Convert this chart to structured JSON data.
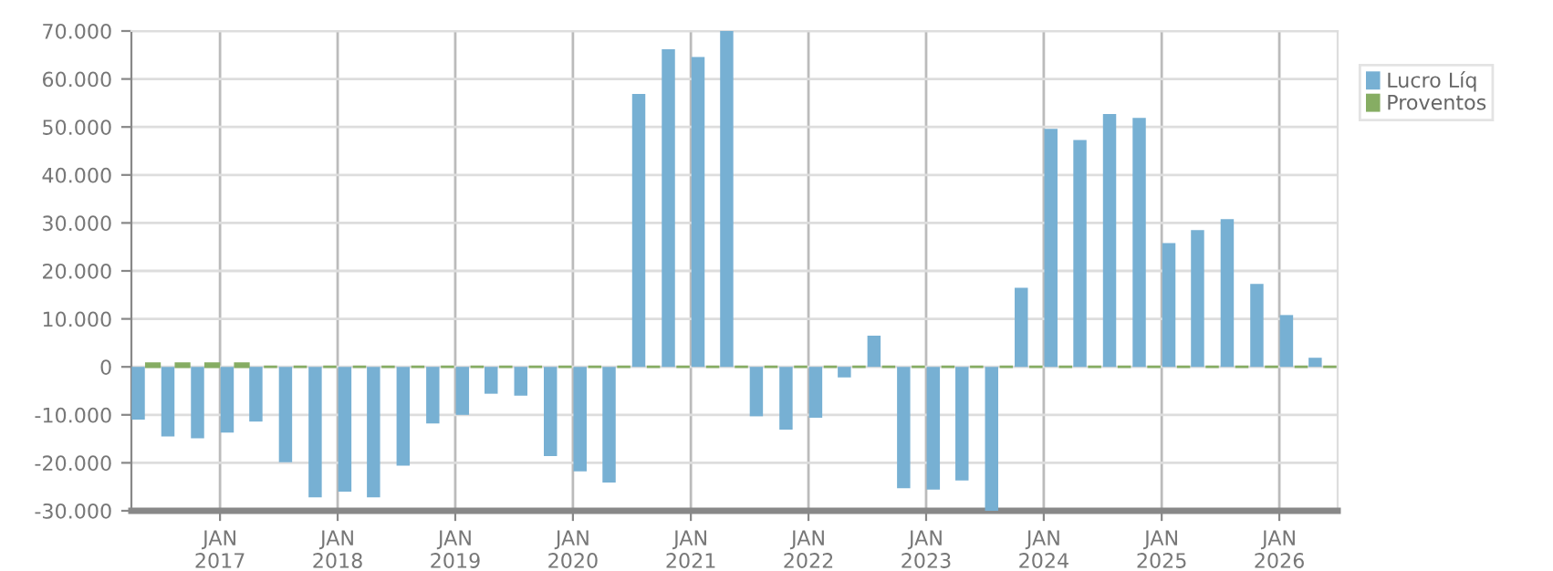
{
  "chart_data": {
    "type": "bar",
    "x": [
      "2016-05-15",
      "2016-08-15",
      "2016-11-15",
      "2017-02-15",
      "2017-05-15",
      "2017-08-15",
      "2017-11-15",
      "2018-02-15",
      "2018-05-15",
      "2018-08-15",
      "2018-11-15",
      "2019-02-15",
      "2019-05-15",
      "2019-08-15",
      "2019-11-15",
      "2020-02-15",
      "2020-05-15",
      "2020-08-15",
      "2020-11-15",
      "2021-02-15",
      "2021-05-15",
      "2021-08-15",
      "2021-11-15",
      "2022-02-15",
      "2022-05-15",
      "2022-08-15",
      "2022-11-15",
      "2023-02-15",
      "2023-05-15",
      "2023-08-15",
      "2023-11-15",
      "2024-02-15",
      "2024-05-15",
      "2024-08-15",
      "2024-11-15",
      "2025-02-15",
      "2025-05-15",
      "2025-08-15",
      "2025-11-15",
      "2026-02-15",
      "2026-05-15"
    ],
    "series": [
      {
        "name": "Lucro Líq",
        "color": "#77b0d3",
        "values": [
          -11000,
          -14500,
          -14900,
          -13700,
          -11400,
          -19900,
          -27200,
          -26000,
          -27200,
          -20600,
          -11800,
          -10000,
          -5600,
          -6000,
          -18600,
          -21800,
          -24100,
          56900,
          66200,
          64600,
          70000,
          -10300,
          -13100,
          -10600,
          -2200,
          6500,
          -25300,
          -25600,
          -23700,
          -30000,
          16500,
          49600,
          47300,
          52700,
          51900,
          25800,
          28500,
          30800,
          17300,
          10800,
          1900
        ]
      },
      {
        "name": "Proventos",
        "color": "#86ad63",
        "values": [
          700,
          700,
          700,
          700,
          0,
          0,
          0,
          0,
          0,
          0,
          0,
          0,
          0,
          0,
          0,
          0,
          0,
          0,
          0,
          0,
          0,
          0,
          0,
          0,
          0,
          0,
          0,
          0,
          0,
          0,
          0,
          0,
          0,
          0,
          0,
          0,
          0,
          0,
          0,
          0,
          0
        ]
      }
    ],
    "xlim": [
      "2016-04",
      "2026-07"
    ],
    "xticks": [
      {
        "value": "2017-01",
        "label": "JAN\n2017"
      },
      {
        "value": "2018-01",
        "label": "JAN\n2018"
      },
      {
        "value": "2019-01",
        "label": "JAN\n2019"
      },
      {
        "value": "2020-01",
        "label": "JAN\n2020"
      },
      {
        "value": "2021-01",
        "label": "JAN\n2021"
      },
      {
        "value": "2022-01",
        "label": "JAN\n2022"
      },
      {
        "value": "2023-01",
        "label": "JAN\n2023"
      },
      {
        "value": "2024-01",
        "label": "JAN\n2024"
      },
      {
        "value": "2025-01",
        "label": "JAN\n2025"
      },
      {
        "value": "2026-01",
        "label": "JAN\n2026"
      }
    ],
    "ylim": [
      -30000,
      70000
    ],
    "yticks": [
      {
        "value": -30000,
        "label": "-30.000"
      },
      {
        "value": -20000,
        "label": "-20.000"
      },
      {
        "value": -10000,
        "label": "-10.000"
      },
      0,
      {
        "value": 10000,
        "label": "10.000"
      },
      {
        "value": 20000,
        "label": "20.000"
      },
      {
        "value": 30000,
        "label": "30.000"
      },
      {
        "value": 40000,
        "label": "40.000"
      },
      {
        "value": 50000,
        "label": "50.000"
      },
      {
        "value": 60000,
        "label": "60.000"
      },
      {
        "value": 70000,
        "label": "70.000"
      }
    ],
    "grid": true,
    "legend": "top right"
  }
}
